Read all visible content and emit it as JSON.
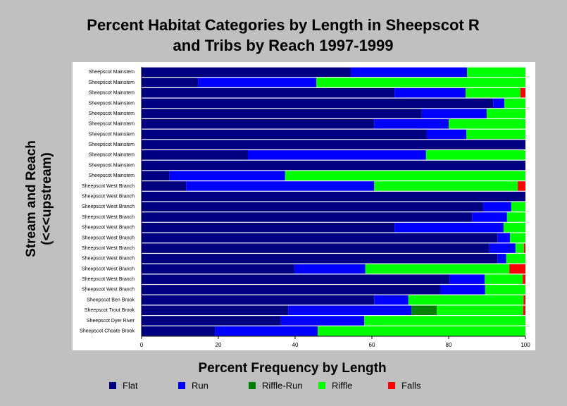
{
  "chart_data": {
    "type": "stacked_barh",
    "title": [
      "Percent Habitat Categories by Length in Sheepscot R",
      "and Tribs by Reach 1997-1999"
    ],
    "x_label": "Percent Frequency by Length",
    "y_label": [
      "Stream and Reach",
      "(<<<upstream)"
    ],
    "categories": [
      "Sheepscot Mainstem",
      "Sheepscot Mainstem",
      "Sheepscot Mainstem",
      "Sheepscot Mainstem",
      "Sheepscot Mainstem",
      "Sheepscot Mainstem",
      "Sheepscot Mainstem",
      "Sheepscot Mainstem",
      "Sheepscot Mainstem",
      "Sheepscot Mainstem",
      "Sheepscot Mainstem",
      "Sheepscot West Branch",
      "Sheepscot West Branch",
      "Sheepscot West Branch",
      "Sheepscot West Branch",
      "Sheepscot West Branch",
      "Sheepscot West Branch",
      "Sheepscot West Branch",
      "Sheepscot West Branch",
      "Sheepscot West Branch",
      "Sheepscot West Branch",
      "Sheepscot West Branch",
      "Sheepscot Ben Brook",
      "Sheepscot Trout Brook",
      "Sheepscot Dyer River",
      "Sheepscot Choate Brook"
    ],
    "series": [
      {
        "name": "Flat",
        "color": "#000080",
        "values": [
          54.5,
          14.7,
          65.9,
          91.6,
          73.0,
          60.6,
          74.3,
          100,
          27.7,
          100,
          7.3,
          11.6,
          100,
          89,
          86.1,
          65.9,
          92.7,
          90.6,
          92.7,
          39.8,
          80.2,
          77.8,
          60.6,
          38.2,
          36.3,
          19.1
        ]
      },
      {
        "name": "Run",
        "color": "#0000ff",
        "values": [
          30.3,
          30.8,
          18.5,
          2.9,
          16.9,
          19.4,
          10.3,
          0,
          46.4,
          0,
          30.1,
          49,
          0,
          7.3,
          9.1,
          28.4,
          3.3,
          6.8,
          2.3,
          18.5,
          9.2,
          11.7,
          8.9,
          32.1,
          21.7,
          26.8
        ]
      },
      {
        "name": "Riffle-Run",
        "color": "#008000",
        "values": [
          0,
          0,
          0,
          0,
          0,
          0,
          0,
          0,
          0,
          0,
          0,
          0,
          0,
          0,
          0,
          0,
          0,
          0,
          0,
          0,
          0,
          0,
          0,
          6.6,
          0,
          0
        ]
      },
      {
        "name": "Riffle",
        "color": "#00ff00",
        "values": [
          15.2,
          54.5,
          14.3,
          5.5,
          10.1,
          20,
          15.4,
          0,
          25.9,
          0,
          62.6,
          37.4,
          0,
          3.7,
          4.8,
          5.7,
          4,
          2.2,
          5,
          37.5,
          9.9,
          10.5,
          30,
          22.5,
          42,
          54.1
        ]
      },
      {
        "name": "Falls",
        "color": "#ff0000",
        "values": [
          0,
          0,
          1.3,
          0,
          0,
          0,
          0,
          0,
          0,
          0,
          0,
          2,
          0,
          0,
          0,
          0,
          0,
          0.4,
          0,
          4.2,
          0.7,
          0,
          0.5,
          0.6,
          0,
          0
        ]
      }
    ],
    "xlim": [
      0,
      100
    ],
    "xticks": [
      0,
      20,
      40,
      60,
      80,
      100
    ]
  }
}
